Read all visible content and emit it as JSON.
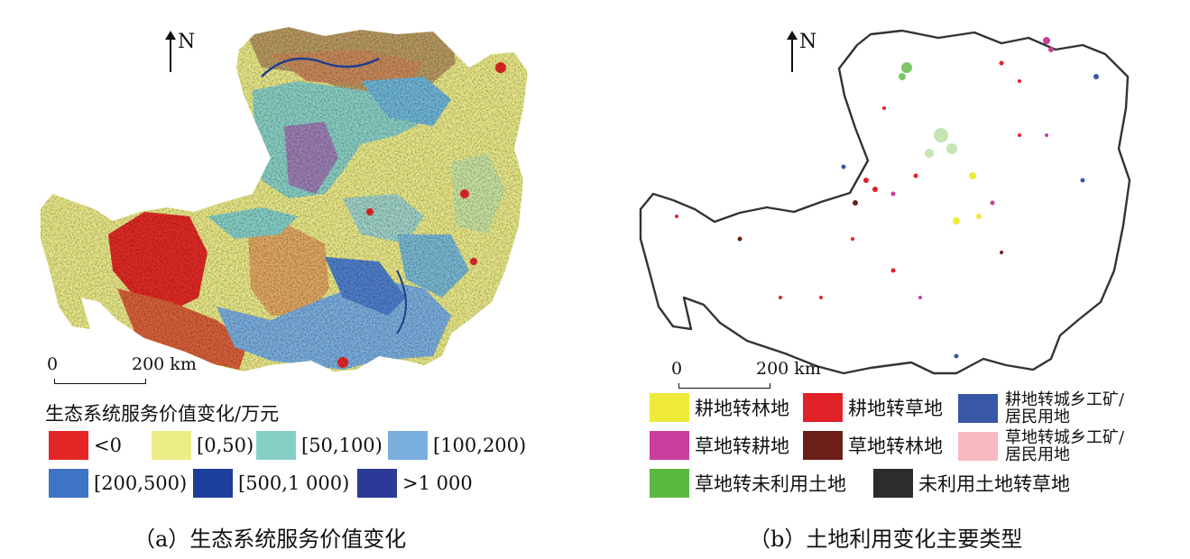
{
  "panel_a": {
    "north_label": "N",
    "scale_start": "0",
    "scale_end": "200 km",
    "legend_title": "生态系统服务价值变化/万元",
    "legend": [
      {
        "label": "<0",
        "color": "#e52626"
      },
      {
        "label": "[0,50)",
        "color": "#ecec86"
      },
      {
        "label": "[50,100)",
        "color": "#86cfc6"
      },
      {
        "label": "[100,200)",
        "color": "#7aaede"
      },
      {
        "label": "[200,500)",
        "color": "#3f74c4"
      },
      {
        "label": "[500,1 000)",
        "color": "#1d3f9c"
      },
      {
        "label": ">1 000",
        "color": "#2b3a96"
      }
    ],
    "caption": "（a）生态系统服务价值变化"
  },
  "panel_b": {
    "north_label": "N",
    "scale_start": "0",
    "scale_end": "200 km",
    "legend": [
      {
        "label": "耕地转林地",
        "color": "#eeea3a"
      },
      {
        "label": "耕地转草地",
        "color": "#e02128"
      },
      {
        "label": "耕地转城乡工矿/\n居民用地",
        "color": "#3957a6"
      },
      {
        "label": "草地转耕地",
        "color": "#c83e9a"
      },
      {
        "label": "草地转林地",
        "color": "#6b1f17"
      },
      {
        "label": "草地转城乡工矿/\n居民用地",
        "color": "#f6b9c0"
      },
      {
        "label": "草地转未利用土地",
        "color": "#5ab840"
      },
      {
        "label": "未利用土地转草地",
        "color": "#2c2c2c"
      }
    ],
    "caption": "（b）土地利用变化主要类型"
  }
}
